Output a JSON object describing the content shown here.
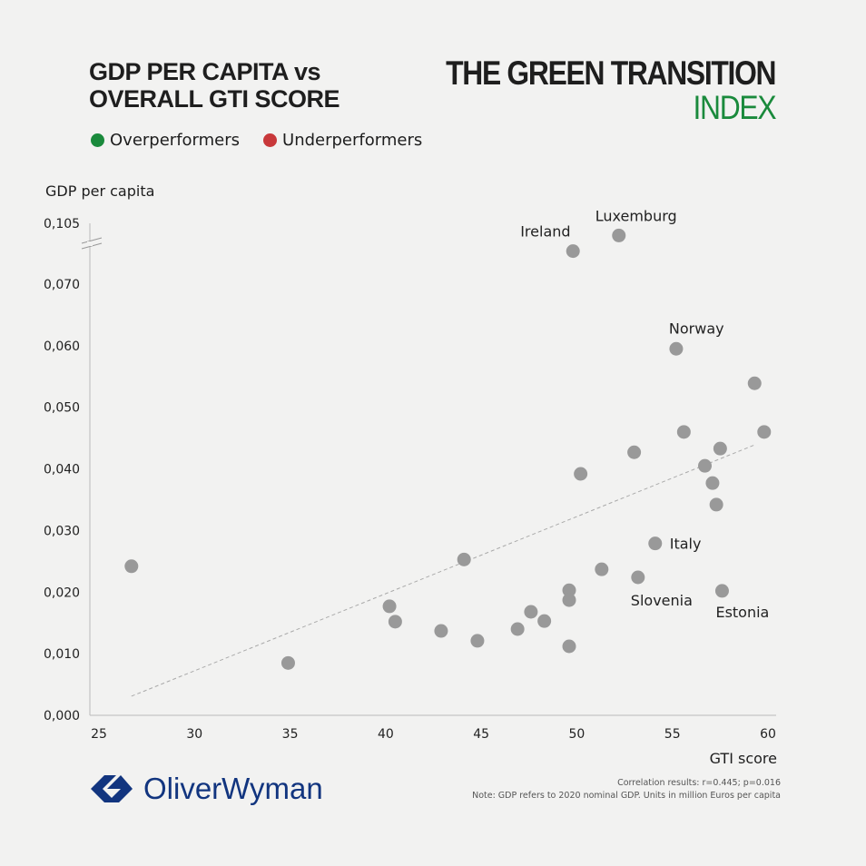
{
  "header": {
    "title_line1": "GDP PER CAPITA vs",
    "title_line2": "OVERALL GTI SCORE",
    "brand_line1": "THE GREEN TRANSITION",
    "brand_line2": "INDEX",
    "brand_color": "#1a8a3c"
  },
  "legend": [
    {
      "label": "Overperformers",
      "color": "#1a8a3c"
    },
    {
      "label": "Underperformers",
      "color": "#c8383a"
    }
  ],
  "footer": {
    "logo": "OliverWyman",
    "logo_color": "#12357f",
    "correlation": "Correlation results: r=0.445; p=0.016",
    "note": "Note: GDP refers to 2020 nominal GDP. Units in million Euros per capita"
  },
  "chart_data": {
    "type": "scatter",
    "xlabel": "GTI score",
    "ylabel": "GDP per capita",
    "xlim": [
      25,
      60
    ],
    "ylim": [
      0,
      0.105
    ],
    "x_ticks": [
      {
        "v": 25,
        "label": "25"
      },
      {
        "v": 30,
        "label": "30"
      },
      {
        "v": 35,
        "label": "35"
      },
      {
        "v": 40,
        "label": "40"
      },
      {
        "v": 45,
        "label": "45"
      },
      {
        "v": 50,
        "label": "50"
      },
      {
        "v": 55,
        "label": "55"
      },
      {
        "v": 60,
        "label": "60"
      }
    ],
    "y_ticks": [
      {
        "v": 0,
        "label": "0,000"
      },
      {
        "v": 0.01,
        "label": "0,010"
      },
      {
        "v": 0.02,
        "label": "0,020"
      },
      {
        "v": 0.03,
        "label": "0,030"
      },
      {
        "v": 0.04,
        "label": "0,040"
      },
      {
        "v": 0.05,
        "label": "0,050"
      },
      {
        "v": 0.06,
        "label": "0,060"
      },
      {
        "v": 0.07,
        "label": "0,070"
      },
      {
        "v": 0.105,
        "label": "0,105"
      }
    ],
    "axis_break": [
      0.07,
      0.105
    ],
    "point_color": "#999999",
    "points": [
      {
        "x": 26.7,
        "y": 0.0242
      },
      {
        "x": 34.9,
        "y": 0.0085
      },
      {
        "x": 40.2,
        "y": 0.0177
      },
      {
        "x": 40.5,
        "y": 0.0152
      },
      {
        "x": 42.9,
        "y": 0.0137
      },
      {
        "x": 44.1,
        "y": 0.0253
      },
      {
        "x": 44.8,
        "y": 0.0121
      },
      {
        "x": 46.9,
        "y": 0.014
      },
      {
        "x": 47.6,
        "y": 0.0168
      },
      {
        "x": 48.3,
        "y": 0.0153
      },
      {
        "x": 49.6,
        "y": 0.0203
      },
      {
        "x": 49.6,
        "y": 0.0187
      },
      {
        "x": 49.6,
        "y": 0.0112
      },
      {
        "x": 49.8,
        "y": 0.089,
        "label": "Ireland"
      },
      {
        "x": 50.2,
        "y": 0.0392
      },
      {
        "x": 51.3,
        "y": 0.0237
      },
      {
        "x": 52.2,
        "y": 0.098,
        "label": "Luxemburg"
      },
      {
        "x": 53.0,
        "y": 0.0427
      },
      {
        "x": 53.2,
        "y": 0.0224,
        "label": "Slovenia"
      },
      {
        "x": 54.1,
        "y": 0.0279,
        "label": "Italy"
      },
      {
        "x": 55.2,
        "y": 0.0595,
        "label": "Norway"
      },
      {
        "x": 55.6,
        "y": 0.046
      },
      {
        "x": 56.7,
        "y": 0.0405
      },
      {
        "x": 57.1,
        "y": 0.0377
      },
      {
        "x": 57.3,
        "y": 0.0342
      },
      {
        "x": 57.5,
        "y": 0.0433
      },
      {
        "x": 57.6,
        "y": 0.0202,
        "label": "Estonia"
      },
      {
        "x": 59.3,
        "y": 0.0539
      },
      {
        "x": 59.8,
        "y": 0.046
      }
    ],
    "trendline": [
      {
        "x": 26.7,
        "y": 0.0031
      },
      {
        "x": 59.3,
        "y": 0.0439
      }
    ]
  }
}
